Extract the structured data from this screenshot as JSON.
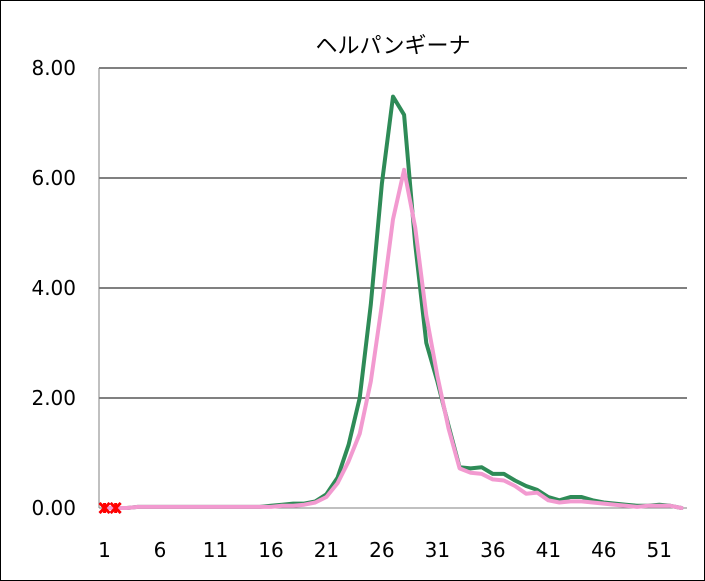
{
  "chart_data": {
    "type": "line",
    "title": "ヘルパンギーナ",
    "xlabel": "",
    "ylabel": "",
    "ylim": [
      0,
      8
    ],
    "yticks": [
      "0.00",
      "2.00",
      "4.00",
      "6.00",
      "8.00"
    ],
    "xticks": [
      "1",
      "6",
      "11",
      "16",
      "21",
      "26",
      "31",
      "36",
      "41",
      "46",
      "51"
    ],
    "x": [
      1,
      2,
      3,
      4,
      5,
      6,
      7,
      8,
      9,
      10,
      11,
      12,
      13,
      14,
      15,
      16,
      17,
      18,
      19,
      20,
      21,
      22,
      23,
      24,
      25,
      26,
      27,
      28,
      29,
      30,
      31,
      32,
      33,
      34,
      35,
      36,
      37,
      38,
      39,
      40,
      41,
      42,
      43,
      44,
      45,
      46,
      47,
      48,
      49,
      50,
      51,
      52,
      53
    ],
    "grid": true,
    "legend": "none",
    "series": [
      {
        "color": "#2e8b57",
        "values": [
          0.0,
          0.0,
          0.0,
          0.02,
          0.02,
          0.02,
          0.02,
          0.02,
          0.02,
          0.02,
          0.02,
          0.02,
          0.02,
          0.02,
          0.02,
          0.04,
          0.06,
          0.08,
          0.08,
          0.12,
          0.25,
          0.55,
          1.15,
          2.0,
          3.7,
          5.9,
          7.48,
          7.15,
          4.8,
          3.0,
          2.3,
          1.5,
          0.74,
          0.72,
          0.74,
          0.62,
          0.62,
          0.5,
          0.4,
          0.33,
          0.2,
          0.14,
          0.2,
          0.2,
          0.14,
          0.1,
          0.08,
          0.06,
          0.04,
          0.04,
          0.06,
          0.04,
          0.0
        ]
      },
      {
        "color": "#f29ad0",
        "values": [
          0.0,
          0.0,
          0.0,
          0.02,
          0.02,
          0.02,
          0.02,
          0.02,
          0.02,
          0.02,
          0.02,
          0.02,
          0.02,
          0.02,
          0.02,
          0.02,
          0.04,
          0.04,
          0.06,
          0.1,
          0.2,
          0.45,
          0.85,
          1.35,
          2.3,
          3.7,
          5.25,
          6.15,
          5.1,
          3.5,
          2.4,
          1.45,
          0.72,
          0.64,
          0.62,
          0.52,
          0.5,
          0.4,
          0.26,
          0.28,
          0.14,
          0.1,
          0.12,
          0.12,
          0.1,
          0.08,
          0.06,
          0.04,
          0.02,
          0.04,
          0.04,
          0.04,
          0.0
        ]
      }
    ],
    "markers": [
      {
        "series": 1,
        "x": 1,
        "y": 0,
        "symbol": "x",
        "color": "#0000cc"
      },
      {
        "series": 1,
        "x": 2,
        "y": 0,
        "symbol": "x",
        "color": "#0000cc"
      },
      {
        "series": 2,
        "x": 1,
        "y": 0,
        "symbol": "cross",
        "color": "#ff0000"
      },
      {
        "series": 2,
        "x": 2,
        "y": 0,
        "symbol": "cross",
        "color": "#ff0000"
      }
    ]
  }
}
